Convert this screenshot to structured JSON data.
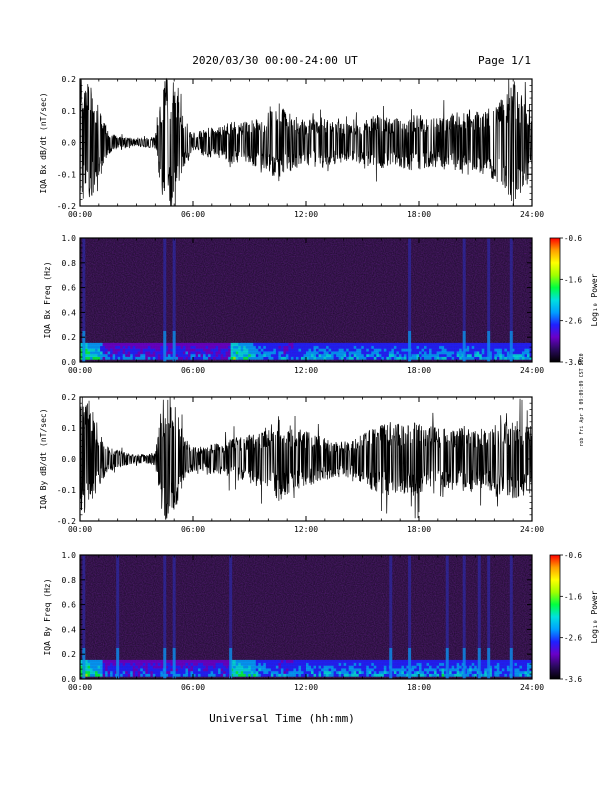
{
  "header": {
    "title": "2020/03/30  00:00-24:00 UT",
    "page": "Page 1/1"
  },
  "side_note": "rob Fri Apr 3 09:09:09 CST 2020",
  "xlabel": "Universal Time (hh:mm)",
  "colors": {
    "waveform": "#000000",
    "spectrogram_background": "#1a0a28",
    "colormap": [
      "#000000",
      "#2a0a5e",
      "#6a00c8",
      "#2020ff",
      "#00a0ff",
      "#00e0e0",
      "#00ff40",
      "#a0ff00",
      "#ffff00",
      "#ffa000",
      "#ff0000"
    ]
  },
  "chart_data": [
    {
      "type": "line",
      "ylabel": "IQA Bx dB/dt (nT/sec)",
      "x_ticks": [
        "00:00",
        "06:00",
        "12:00",
        "18:00",
        "24:00"
      ],
      "y_ticks": [
        "-0.2",
        "-0.1",
        "0.0",
        "0.1",
        "0.2"
      ],
      "y_tick_values": [
        -0.2,
        -0.1,
        0.0,
        0.1,
        0.2
      ],
      "xlim": [
        0,
        24
      ],
      "ylim": [
        -0.2,
        0.2
      ],
      "series": [
        {
          "x": [
            0,
            0.5,
            1,
            1.5,
            2,
            2.5,
            3,
            3.5,
            4,
            4.4,
            4.7,
            5,
            5.5,
            6,
            6.5,
            7,
            7.5,
            8,
            8.5,
            9,
            9.5,
            10,
            10.5,
            11,
            11.5,
            12,
            12.5,
            13,
            13.5,
            14,
            14.5,
            15,
            15.5,
            16,
            16.5,
            17,
            17.5,
            18,
            18.5,
            19,
            19.5,
            20,
            20.5,
            21,
            21.5,
            22,
            22.5,
            23,
            23.5,
            24
          ],
          "y_amplitude": [
            0.2,
            0.2,
            0.12,
            0.04,
            0.02,
            0.015,
            0.01,
            0.015,
            0.02,
            0.2,
            0.2,
            0.2,
            0.08,
            0.03,
            0.04,
            0.05,
            0.05,
            0.07,
            0.06,
            0.07,
            0.08,
            0.09,
            0.13,
            0.1,
            0.08,
            0.07,
            0.08,
            0.08,
            0.07,
            0.06,
            0.06,
            0.07,
            0.08,
            0.09,
            0.08,
            0.08,
            0.09,
            0.09,
            0.08,
            0.08,
            0.09,
            0.1,
            0.11,
            0.1,
            0.1,
            0.12,
            0.14,
            0.2,
            0.15,
            0.12
          ]
        }
      ]
    },
    {
      "type": "heatmap",
      "ylabel": "IQA Bx Freq (Hz)",
      "x_ticks": [
        "00:00",
        "06:00",
        "12:00",
        "18:00",
        "24:00"
      ],
      "y_ticks": [
        "0.0",
        "0.2",
        "0.4",
        "0.6",
        "0.8",
        "1.0"
      ],
      "y_tick_values": [
        0,
        0.2,
        0.4,
        0.6,
        0.8,
        1.0
      ],
      "xlim": [
        0,
        24
      ],
      "ylim": [
        0,
        1.0
      ],
      "colorbar": {
        "label": "Log₁₀ Power",
        "ticks": [
          "-0.6",
          "-1.6",
          "-2.6",
          "-3.6"
        ],
        "tick_values": [
          -0.6,
          -1.6,
          -2.6,
          -3.6
        ],
        "range": [
          -3.6,
          -0.6
        ]
      },
      "bursts_hours": [
        0.2,
        4.5,
        5.0,
        17.5,
        20.4,
        21.7,
        22.9
      ]
    },
    {
      "type": "line",
      "ylabel": "IQA By dB/dt (nT/sec)",
      "x_ticks": [
        "00:00",
        "06:00",
        "12:00",
        "18:00",
        "24:00"
      ],
      "y_ticks": [
        "-0.2",
        "-0.1",
        "0.0",
        "0.1",
        "0.2"
      ],
      "y_tick_values": [
        -0.2,
        -0.1,
        0.0,
        0.1,
        0.2
      ],
      "xlim": [
        0,
        24
      ],
      "ylim": [
        -0.2,
        0.2
      ],
      "series": [
        {
          "x": [
            0,
            0.5,
            1,
            1.5,
            2,
            2.5,
            3,
            3.5,
            4,
            4.4,
            4.7,
            5,
            5.5,
            6,
            6.5,
            7,
            7.5,
            8,
            8.5,
            9,
            9.5,
            10,
            10.5,
            11,
            11.5,
            12,
            12.5,
            13,
            13.5,
            14,
            14.5,
            15,
            15.5,
            16,
            16.5,
            17,
            17.5,
            18,
            18.5,
            19,
            19.5,
            20,
            20.5,
            21,
            21.5,
            22,
            22.5,
            23,
            23.5,
            24
          ],
          "y_amplitude": [
            0.2,
            0.2,
            0.1,
            0.04,
            0.03,
            0.02,
            0.015,
            0.015,
            0.02,
            0.2,
            0.2,
            0.2,
            0.07,
            0.04,
            0.04,
            0.05,
            0.05,
            0.07,
            0.07,
            0.08,
            0.09,
            0.1,
            0.14,
            0.12,
            0.1,
            0.09,
            0.08,
            0.07,
            0.06,
            0.06,
            0.06,
            0.08,
            0.1,
            0.11,
            0.12,
            0.11,
            0.12,
            0.12,
            0.11,
            0.1,
            0.1,
            0.1,
            0.11,
            0.1,
            0.1,
            0.11,
            0.12,
            0.13,
            0.12,
            0.11
          ]
        }
      ]
    },
    {
      "type": "heatmap",
      "ylabel": "IQA By Freq (Hz)",
      "x_ticks": [
        "00:00",
        "06:00",
        "12:00",
        "18:00",
        "24:00"
      ],
      "y_ticks": [
        "0.0",
        "0.2",
        "0.4",
        "0.6",
        "0.8",
        "1.0"
      ],
      "y_tick_values": [
        0,
        0.2,
        0.4,
        0.6,
        0.8,
        1.0
      ],
      "xlim": [
        0,
        24
      ],
      "ylim": [
        0,
        1.0
      ],
      "colorbar": {
        "label": "Log₁₀ Power",
        "ticks": [
          "-0.6",
          "-1.6",
          "-2.6",
          "-3.6"
        ],
        "tick_values": [
          -0.6,
          -1.6,
          -2.6,
          -3.6
        ],
        "range": [
          -3.6,
          -0.6
        ]
      },
      "bursts_hours": [
        0.2,
        2.0,
        4.5,
        5.0,
        8.0,
        16.5,
        17.5,
        19.5,
        20.4,
        21.2,
        21.7,
        22.9
      ]
    }
  ]
}
